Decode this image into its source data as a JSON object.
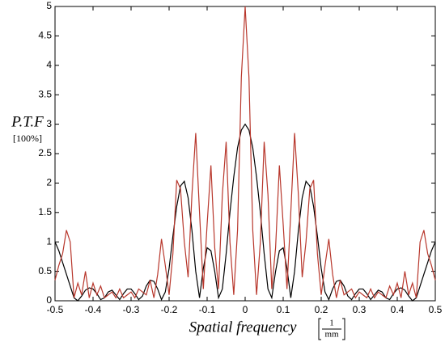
{
  "chart_data": {
    "type": "line",
    "y_label": "P.T.F",
    "y_unit": "[100%]",
    "x_label": "Spatial frequency",
    "x_unit": {
      "numerator": "1",
      "denominator": "mm"
    },
    "x": [
      -0.5,
      -0.49,
      -0.48,
      -0.47,
      -0.46,
      -0.45,
      -0.44,
      -0.43,
      -0.42,
      -0.41,
      -0.4,
      -0.39,
      -0.38,
      -0.37,
      -0.36,
      -0.35,
      -0.34,
      -0.33,
      -0.32,
      -0.31,
      -0.3,
      -0.29,
      -0.28,
      -0.27,
      -0.26,
      -0.25,
      -0.24,
      -0.23,
      -0.22,
      -0.21,
      -0.2,
      -0.19,
      -0.18,
      -0.17,
      -0.16,
      -0.15,
      -0.14,
      -0.13,
      -0.12,
      -0.11,
      -0.1,
      -0.09,
      -0.08,
      -0.07,
      -0.06,
      -0.05,
      -0.04,
      -0.03,
      -0.02,
      -0.01,
      0,
      0.01,
      0.02,
      0.03,
      0.04,
      0.05,
      0.06,
      0.07,
      0.08,
      0.09,
      0.1,
      0.11,
      0.12,
      0.13,
      0.14,
      0.15,
      0.16,
      0.17,
      0.18,
      0.19,
      0.2,
      0.21,
      0.22,
      0.23,
      0.24,
      0.25,
      0.26,
      0.27,
      0.28,
      0.29,
      0.3,
      0.31,
      0.32,
      0.33,
      0.34,
      0.35,
      0.36,
      0.37,
      0.38,
      0.39,
      0.4,
      0.41,
      0.42,
      0.43,
      0.44,
      0.45,
      0.46,
      0.47,
      0.48,
      0.49,
      0.5
    ],
    "series": [
      {
        "color": "#000000",
        "values": [
          1,
          0.85,
          0.65,
          0.45,
          0.25,
          0.05,
          0,
          0.08,
          0.18,
          0.22,
          0.2,
          0.12,
          0.02,
          0.05,
          0.15,
          0.18,
          0.1,
          0.02,
          0.12,
          0.2,
          0.2,
          0.12,
          0.02,
          0.08,
          0.25,
          0.35,
          0.33,
          0.2,
          0.02,
          0.15,
          0.55,
          1.1,
          1.6,
          1.95,
          2.03,
          1.75,
          1.2,
          0.5,
          0.05,
          0.55,
          0.9,
          0.85,
          0.5,
          0.05,
          0.2,
          0.8,
          1.5,
          2.1,
          2.6,
          2.9,
          3,
          2.9,
          2.6,
          2.1,
          1.5,
          0.8,
          0.2,
          0.05,
          0.5,
          0.85,
          0.9,
          0.55,
          0.05,
          0.5,
          1.2,
          1.75,
          2.03,
          1.95,
          1.6,
          1.1,
          0.55,
          0.15,
          0.02,
          0.2,
          0.33,
          0.35,
          0.25,
          0.08,
          0.02,
          0.12,
          0.2,
          0.2,
          0.12,
          0.02,
          0.1,
          0.18,
          0.15,
          0.05,
          0.02,
          0.12,
          0.2,
          0.22,
          0.18,
          0.08,
          0,
          0.05,
          0.25,
          0.45,
          0.65,
          0.85,
          1
        ]
      },
      {
        "color": "#b8372c",
        "values": [
          0.35,
          0.6,
          0.8,
          1.2,
          1,
          0.05,
          0.3,
          0.1,
          0.5,
          0.05,
          0.3,
          0.1,
          0.25,
          0.05,
          0.1,
          0.15,
          0.05,
          0.2,
          0.05,
          0.1,
          0.15,
          0.05,
          0.2,
          0.15,
          0.1,
          0.35,
          0.05,
          0.45,
          1.05,
          0.6,
          0.1,
          0.8,
          2.05,
          1.9,
          1,
          0.4,
          1.8,
          2.85,
          1.5,
          0.2,
          1.3,
          2.3,
          0.9,
          0.2,
          1.8,
          2.7,
          1,
          0.1,
          1.2,
          3.8,
          5,
          3.8,
          1.2,
          0.1,
          1,
          2.7,
          1.8,
          0.2,
          0.9,
          2.3,
          1.3,
          0.2,
          1.5,
          2.85,
          1.8,
          0.4,
          1,
          1.9,
          2.05,
          0.8,
          0.1,
          0.6,
          1.05,
          0.45,
          0.05,
          0.35,
          0.1,
          0.15,
          0.2,
          0.05,
          0.15,
          0.1,
          0.05,
          0.2,
          0.05,
          0.15,
          0.1,
          0.05,
          0.25,
          0.1,
          0.3,
          0.05,
          0.5,
          0.1,
          0.3,
          0.05,
          1,
          1.2,
          0.8,
          0.6,
          0.35
        ]
      }
    ],
    "xlim": [
      -0.5,
      0.5
    ],
    "xticks": [
      -0.5,
      -0.4,
      -0.3,
      -0.2,
      -0.1,
      0,
      0.1,
      0.2,
      0.3,
      0.4,
      0.5
    ],
    "ylim": [
      0,
      5
    ],
    "yticks": [
      0,
      0.5,
      1,
      1.5,
      2,
      2.5,
      3,
      3.5,
      4,
      4.5,
      5
    ]
  }
}
